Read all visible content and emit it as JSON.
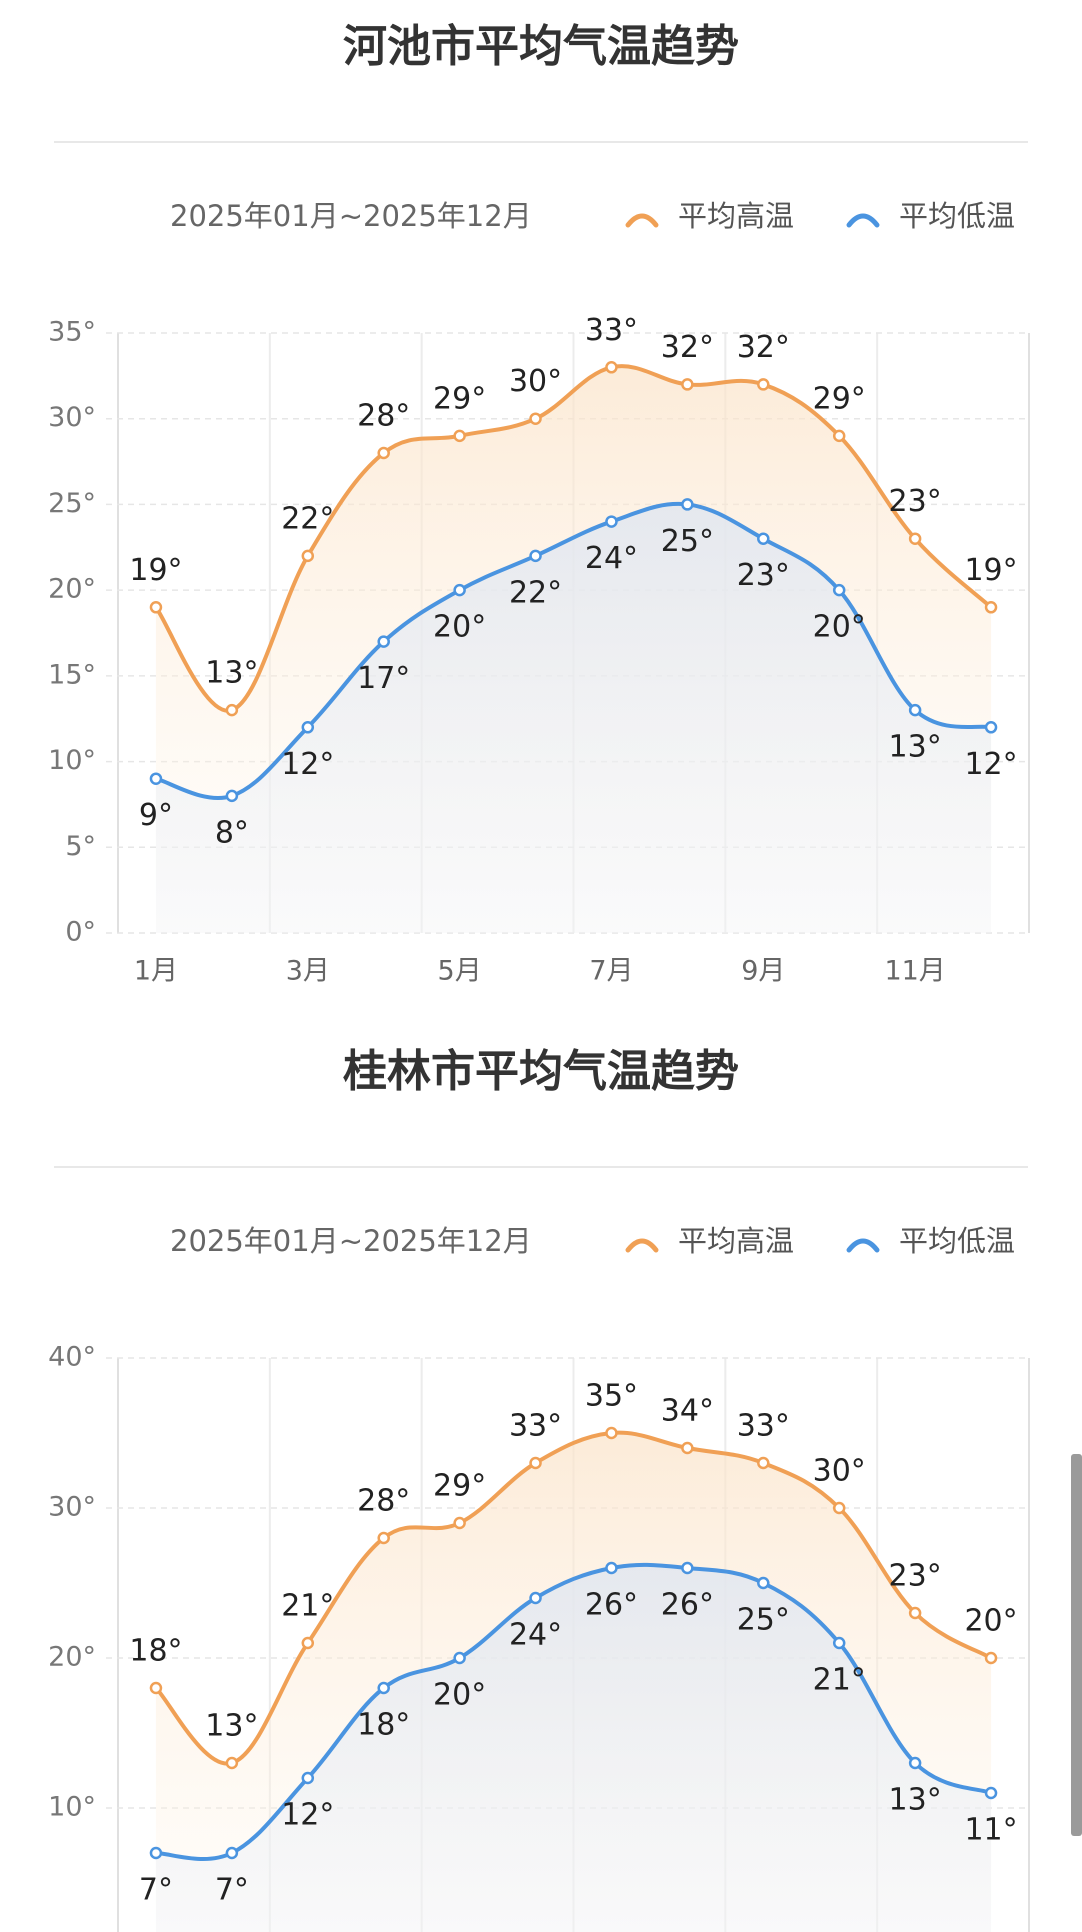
{
  "chart_data": [
    {
      "type": "line",
      "title": "河池市平均气温趋势",
      "subtitle": "2025年01月~2025年12月",
      "categories": [
        "1月",
        null,
        "3月",
        null,
        "5月",
        null,
        "7月",
        null,
        "9月",
        null,
        "11月",
        null
      ],
      "series": [
        {
          "name": "平均高温",
          "color": "#f0a055",
          "values": [
            19,
            13,
            22,
            28,
            29,
            30,
            33,
            32,
            32,
            29,
            23,
            19
          ],
          "value_labels": [
            "19°",
            "13°",
            "22°",
            "28°",
            "29°",
            "30°",
            "33°",
            "32°",
            "32°",
            "29°",
            "23°",
            "19°"
          ]
        },
        {
          "name": "平均低温",
          "color": "#4a94e0",
          "values": [
            9,
            8,
            12,
            17,
            20,
            22,
            24,
            25,
            23,
            20,
            13,
            12
          ],
          "value_labels": [
            "9°",
            "8°",
            "12°",
            "17°",
            "20°",
            "22°",
            "24°",
            "25°",
            "23°",
            "20°",
            "13°",
            "12°"
          ]
        }
      ],
      "ylim": [
        0,
        35
      ],
      "yticks": [
        {
          "value": 0,
          "label": "0°"
        },
        {
          "value": 5,
          "label": "5°"
        },
        {
          "value": 10,
          "label": "10°"
        },
        {
          "value": 15,
          "label": "15°"
        },
        {
          "value": 20,
          "label": "20°"
        },
        {
          "value": 25,
          "label": "25°"
        },
        {
          "value": 30,
          "label": "30°"
        },
        {
          "value": 35,
          "label": "35°"
        }
      ],
      "grid": true
    },
    {
      "type": "line",
      "title": "桂林市平均气温趋势",
      "subtitle": "2025年01月~2025年12月",
      "categories": [
        null,
        null,
        null,
        null,
        null,
        null,
        null,
        null,
        null,
        null,
        null,
        null
      ],
      "series": [
        {
          "name": "平均高温",
          "color": "#f0a055",
          "values": [
            18,
            13,
            21,
            28,
            29,
            33,
            35,
            34,
            33,
            30,
            23,
            20
          ],
          "value_labels": [
            "18°",
            "13°",
            "21°",
            "28°",
            "29°",
            "33°",
            "35°",
            "34°",
            "33°",
            "30°",
            "23°",
            "20°"
          ]
        },
        {
          "name": "平均低温",
          "color": "#4a94e0",
          "values": [
            7,
            7,
            12,
            18,
            20,
            24,
            26,
            26,
            25,
            21,
            13,
            11
          ],
          "value_labels": [
            "7°",
            "7°",
            "12°",
            "18°",
            "20°",
            "24°",
            "26°",
            "26°",
            "25°",
            "21°",
            "13°",
            "11°"
          ]
        }
      ],
      "ylim": [
        0,
        40
      ],
      "yticks": [
        {
          "value": 10,
          "label": "10°"
        },
        {
          "value": 20,
          "label": "20°"
        },
        {
          "value": 30,
          "label": "30°"
        },
        {
          "value": 40,
          "label": "40°"
        }
      ],
      "grid": true
    }
  ]
}
